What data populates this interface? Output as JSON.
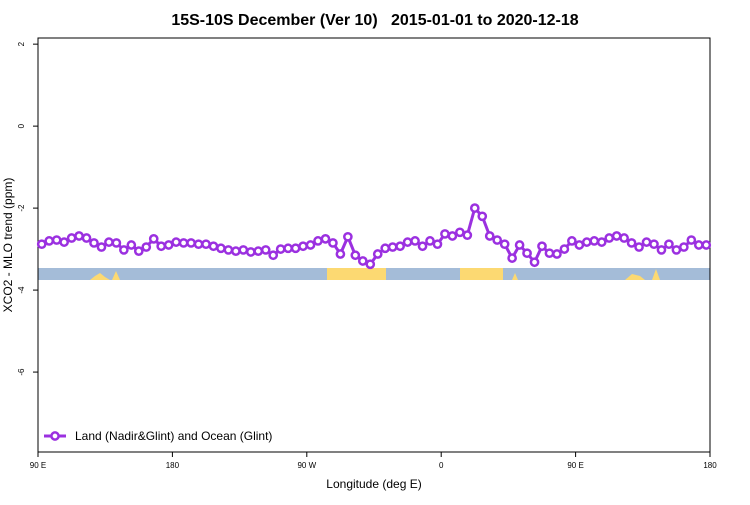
{
  "chart_data": {
    "type": "line",
    "title": "15S-10S December (Ver 10)   2015-01-01 to 2020-12-18",
    "x_label": "Longitude (deg E)",
    "y_label": "XCO2 - MLO trend (ppm)",
    "x": [
      92.5,
      97.5,
      102.5,
      107.5,
      112.5,
      117.5,
      122.5,
      127.5,
      132.5,
      137.5,
      142.5,
      147.5,
      152.5,
      157.5,
      162.5,
      167.5,
      172.5,
      177.5,
      182.5,
      187.5,
      192.5,
      197.5,
      202.5,
      207.5,
      212.5,
      217.5,
      222.5,
      227.5,
      232.5,
      237.5,
      242.5,
      247.5,
      252.5,
      257.5,
      262.5,
      267.5,
      272.5,
      277.5,
      282.5,
      287.5,
      292.5,
      297.5,
      302.5,
      307.5,
      312.5,
      317.5,
      322.5,
      327.5,
      332.5,
      337.5,
      342.5,
      347.5,
      352.5,
      357.5,
      362.5,
      367.5,
      372.5,
      377.5,
      382.5,
      387.5,
      392.5,
      397.5,
      402.5,
      407.5,
      412.5,
      417.5,
      422.5,
      427.5,
      432.5,
      437.5,
      442.5,
      447.5,
      452.5,
      457.5,
      462.5,
      467.5,
      472.5,
      477.5,
      482.5,
      487.5,
      492.5,
      497.5,
      502.5,
      507.5,
      512.5,
      517.5,
      522.5,
      527.5,
      532.5,
      537.5
    ],
    "series": [
      {
        "name": "Land (Nadir&Glint) and Ocean (Glint)",
        "color": "#9b30e0",
        "values": [
          -2.88,
          -2.8,
          -2.78,
          -2.83,
          -2.73,
          -2.68,
          -2.73,
          -2.85,
          -2.95,
          -2.83,
          -2.85,
          -3.02,
          -2.9,
          -3.05,
          -2.95,
          -2.75,
          -2.93,
          -2.9,
          -2.83,
          -2.85,
          -2.85,
          -2.88,
          -2.88,
          -2.93,
          -2.98,
          -3.02,
          -3.05,
          -3.02,
          -3.07,
          -3.05,
          -3.02,
          -3.15,
          -3.0,
          -2.98,
          -2.98,
          -2.93,
          -2.9,
          -2.8,
          -2.75,
          -2.85,
          -3.12,
          -2.7,
          -3.15,
          -3.29,
          -3.37,
          -3.12,
          -2.98,
          -2.95,
          -2.93,
          -2.83,
          -2.8,
          -2.93,
          -2.8,
          -2.88,
          -2.63,
          -2.68,
          -2.59,
          -2.66,
          -2.0,
          -2.2,
          -2.68,
          -2.78,
          -2.88,
          -3.22,
          -2.9,
          -3.1,
          -3.32,
          -2.93,
          -3.1,
          -3.12,
          -3.0,
          -2.8,
          -2.9,
          -2.83,
          -2.8,
          -2.83,
          -2.73,
          -2.68,
          -2.73,
          -2.85,
          -2.95,
          -2.83,
          -2.88,
          -3.02,
          -2.88,
          -3.02,
          -2.95,
          -2.78,
          -2.9,
          -2.9
        ]
      }
    ],
    "xlim": [
      90,
      540
    ],
    "xticks": [
      {
        "value": 90,
        "label": "90 E"
      },
      180,
      {
        "value": 270,
        "label": "90 W"
      },
      {
        "value": 360,
        "label": "0"
      },
      {
        "value": 450,
        "label": "90 E"
      },
      {
        "value": 540,
        "label": "180"
      }
    ],
    "ylim": [
      -7.95,
      2.15
    ],
    "yticks": [
      2,
      0,
      -2,
      -4,
      -6
    ],
    "legend": "bottom-left"
  }
}
